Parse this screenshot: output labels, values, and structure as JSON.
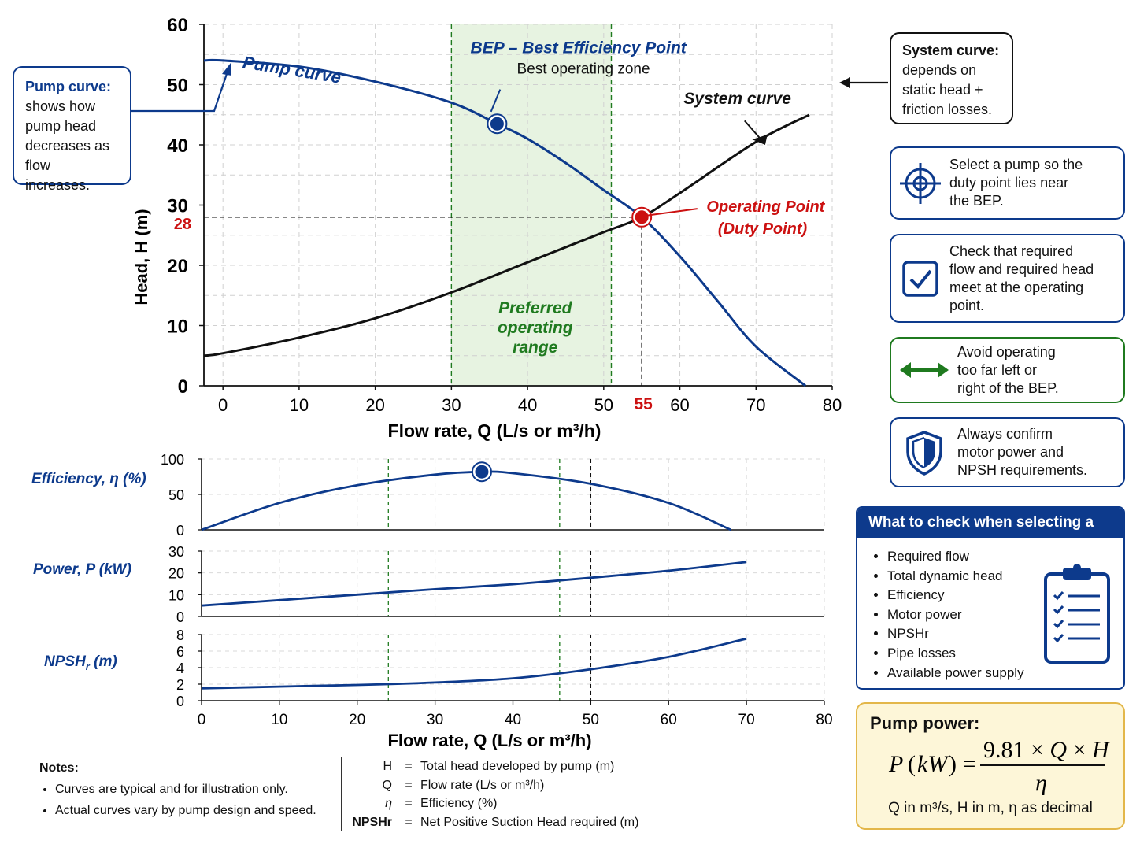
{
  "chart_data": [
    {
      "type": "line",
      "name": "head-flow",
      "xlabel": "Flow rate, Q (L/s or m³/h)",
      "ylabel": "Head, H (m)",
      "xlim": [
        -2.5,
        80
      ],
      "ylim": [
        0,
        60
      ],
      "xticks": [
        0,
        10,
        20,
        30,
        40,
        50,
        60,
        70,
        80
      ],
      "yticks": [
        0,
        10,
        20,
        30,
        40,
        50,
        60
      ],
      "grid": true,
      "series": [
        {
          "name": "Pump curve",
          "color": "#0d3a8c",
          "x": [
            -2.5,
            0,
            10,
            20,
            30,
            36,
            40,
            45,
            50,
            55,
            60,
            65,
            70,
            76.5
          ],
          "y": [
            54,
            54,
            53,
            50.5,
            47,
            43.5,
            41,
            37,
            32.5,
            28,
            21.5,
            14,
            6.5,
            0
          ]
        },
        {
          "name": "System curve",
          "color": "#111111",
          "x": [
            -2.5,
            0,
            10,
            20,
            30,
            40,
            50,
            55,
            60,
            70,
            77
          ],
          "y": [
            5,
            5.4,
            8,
            11.2,
            15.5,
            20.5,
            25.5,
            28,
            32,
            40.5,
            45
          ]
        }
      ],
      "preferred_range": [
        30,
        51
      ],
      "preferred_range_label": [
        "Preferred",
        "operating",
        "range"
      ],
      "bep": {
        "x": 36,
        "y": 43.5,
        "label": "BEP – Best Efficiency Point",
        "sublabel": "Best operating zone"
      },
      "operating_point": {
        "x": 55,
        "y": 28,
        "label": "Operating Point",
        "sublabel": "(Duty Point)",
        "x_label": "55",
        "y_label": "28"
      }
    },
    {
      "type": "line",
      "name": "efficiency",
      "ylabel": "Efficiency, η (%)",
      "xlim": [
        0,
        80
      ],
      "ylim": [
        0,
        100
      ],
      "yticks": [
        0,
        50,
        100
      ],
      "series": [
        {
          "color": "#0d3a8c",
          "x": [
            0,
            10,
            20,
            30,
            36,
            40,
            50,
            60,
            68
          ],
          "y": [
            0,
            38,
            63,
            78,
            82,
            80,
            65,
            38,
            0
          ]
        }
      ],
      "bep": {
        "x": 36,
        "y": 82
      }
    },
    {
      "type": "line",
      "name": "power",
      "ylabel": "Power, P (kW)",
      "xlim": [
        0,
        80
      ],
      "ylim": [
        0,
        30
      ],
      "yticks": [
        0,
        10,
        20,
        30
      ],
      "series": [
        {
          "color": "#0d3a8c",
          "x": [
            0,
            10,
            20,
            30,
            40,
            50,
            60,
            70
          ],
          "y": [
            5,
            7.5,
            10,
            12.5,
            14.8,
            17.8,
            21,
            25
          ]
        }
      ]
    },
    {
      "type": "line",
      "name": "npshr",
      "ylabel": "NPSHr (m)",
      "xlim": [
        0,
        80
      ],
      "ylim": [
        0,
        8
      ],
      "yticks": [
        0,
        2,
        4,
        6,
        8
      ],
      "xticks": [
        0,
        10,
        20,
        30,
        40,
        50,
        60,
        70,
        80
      ],
      "xlabel": "Flow rate, Q (L/s or m³/h)",
      "series": [
        {
          "color": "#0d3a8c",
          "x": [
            0,
            10,
            20,
            30,
            40,
            50,
            60,
            70
          ],
          "y": [
            1.5,
            1.7,
            1.9,
            2.2,
            2.7,
            3.8,
            5.3,
            7.5
          ]
        }
      ]
    }
  ],
  "lower_chart_guides": {
    "dashed_green_x": [
      24,
      46
    ],
    "dashed_black_x": 50
  },
  "callouts": {
    "pump_curve": {
      "heading": "Pump curve:",
      "lines": [
        "shows how",
        "pump head",
        "decreases as",
        "flow increases."
      ]
    },
    "system_curve": {
      "heading": "System curve:",
      "lines": [
        "depends on",
        "static head +",
        "friction losses."
      ]
    }
  },
  "tips": [
    {
      "icon": "crosshair-icon",
      "lines": [
        "Select a pump so the",
        "duty point lies near",
        "the BEP."
      ]
    },
    {
      "icon": "checkbox-icon",
      "lines": [
        "Check that required",
        "flow and required head",
        "meet at the operating",
        "point."
      ]
    },
    {
      "icon": "double-arrow-icon",
      "lines": [
        "Avoid operating",
        "too far left or",
        "right of the BEP."
      ]
    },
    {
      "icon": "shield-icon",
      "lines": [
        "Always confirm",
        "motor power and",
        "NPSH requirements."
      ]
    }
  ],
  "checklist": {
    "title": "What to check when selecting a pump",
    "items": [
      "Required flow",
      "Total dynamic head",
      "Efficiency",
      "Motor power",
      "NPSHr",
      "Pipe losses",
      "Available power supply"
    ]
  },
  "pump_power": {
    "title": "Pump power:",
    "units": "Q in m³/s, H in m, η as decimal"
  },
  "notes": {
    "title": "Notes:",
    "items": [
      "Curves are typical and for illustration only.",
      "Actual curves vary by pump design and speed."
    ]
  },
  "legend": [
    {
      "symbol": "H",
      "eq": "=",
      "desc": "Total head developed by pump (m)"
    },
    {
      "symbol": "Q",
      "eq": "=",
      "desc": "Flow rate (L/s or m³/h)"
    },
    {
      "symbol": "η",
      "eq": "=",
      "desc": "Efficiency (%)"
    },
    {
      "symbol": "NPSHr",
      "eq": "=",
      "desc": "Net Positive Suction Head required (m)"
    }
  ],
  "colors": {
    "blue": "#0d3a8c",
    "red": "#cc1111",
    "green": "#1f7a1f",
    "zone": "#e7f3e1"
  }
}
